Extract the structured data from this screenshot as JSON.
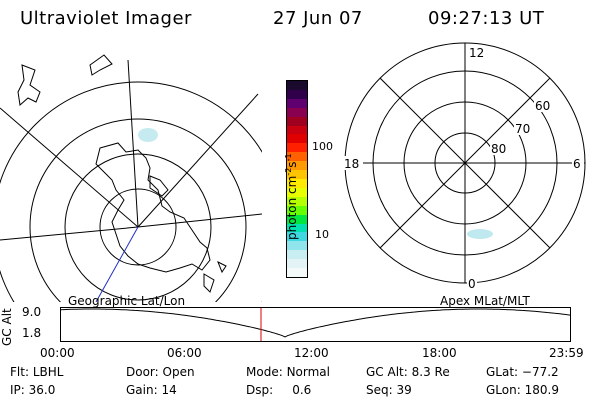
{
  "header": {
    "title": "Ultraviolet Imager",
    "date": "27 Jun 07",
    "time": "09:27:13 UT"
  },
  "colorbar": {
    "unit": "photon cm",
    "unit_exp1": "-2",
    "unit_s": "s",
    "unit_exp2": "-1",
    "ticks": [
      "100",
      "10"
    ],
    "colors": [
      "#1a0a2e",
      "#30004a",
      "#600070",
      "#8a0050",
      "#a00020",
      "#c80010",
      "#e00000",
      "#ff2000",
      "#ff6000",
      "#ff9a00",
      "#ffc400",
      "#ffea00",
      "#e8ff00",
      "#b4ff00",
      "#66ff00",
      "#00e840",
      "#00e0b0",
      "#40d8e0",
      "#90e4ec",
      "#c8eef2",
      "#e4f4f6",
      "#f4fafa"
    ]
  },
  "left_map": {
    "caption": "Geographic Lat/Lon"
  },
  "right_map": {
    "caption": "Apex MLat/MLT",
    "mlt_labels": {
      "top": "12",
      "left": "18",
      "right": "6",
      "bottom": "0"
    },
    "lat_labels": [
      "60",
      "70",
      "80"
    ]
  },
  "altitude_panel": {
    "y_label": "GC Alt",
    "y_max": "9.0",
    "y_min": "1.8",
    "x_ticks": [
      "00:00",
      "06:00",
      "12:00",
      "18:00",
      "23:59"
    ],
    "current_marker_color": "#e00000"
  },
  "status": {
    "flt_label": "Flt:",
    "flt_value": "LBHL",
    "door_label": "Door:",
    "door_value": "Open",
    "mode_label": "Mode:",
    "mode_value": "Normal",
    "gcalt_label": "GC Alt:",
    "gcalt_value": "8.3 Re",
    "glat_label": "GLat:",
    "glat_value": "−77.2",
    "ip_label": "IP:",
    "ip_value": "36.0",
    "gain_label": "Gain:",
    "gain_value": "14",
    "dsp_label": "Dsp:",
    "dsp_value": "0.6",
    "seq_label": "Seq:",
    "seq_value": "39",
    "glon_label": "GLon:",
    "glon_value": "180.9"
  }
}
